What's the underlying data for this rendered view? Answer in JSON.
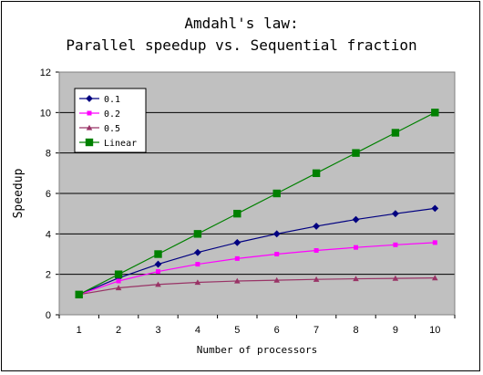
{
  "chart_data": {
    "type": "line",
    "title_lines": [
      "Amdahl's law:",
      "Parallel speedup vs. Sequential fraction"
    ],
    "xlabel": "Number of processors",
    "ylabel": "Speedup",
    "x": [
      1,
      2,
      3,
      4,
      5,
      6,
      7,
      8,
      9,
      10
    ],
    "xlim": [
      1,
      10
    ],
    "ylim": [
      0,
      12
    ],
    "yticks": [
      0,
      2,
      4,
      6,
      8,
      10,
      12
    ],
    "grid": "horizontal",
    "plot_background": "#c0c0c0",
    "legend_position": "top-left",
    "series": [
      {
        "name": "0.1",
        "color": "#000080",
        "marker": "diamond",
        "values": [
          1.0,
          1.82,
          2.5,
          3.08,
          3.57,
          4.0,
          4.38,
          4.71,
          5.0,
          5.26
        ]
      },
      {
        "name": "0.2",
        "color": "#ff00ff",
        "marker": "square-small",
        "values": [
          1.0,
          1.67,
          2.14,
          2.5,
          2.78,
          3.0,
          3.18,
          3.33,
          3.46,
          3.57
        ]
      },
      {
        "name": "0.5",
        "color": "#993366",
        "marker": "triangle",
        "values": [
          1.0,
          1.33,
          1.5,
          1.6,
          1.67,
          1.71,
          1.75,
          1.78,
          1.8,
          1.82
        ]
      },
      {
        "name": "Linear",
        "color": "#008000",
        "marker": "square-large",
        "values": [
          1,
          2,
          3,
          4,
          5,
          6,
          7,
          8,
          9,
          10
        ]
      }
    ]
  }
}
